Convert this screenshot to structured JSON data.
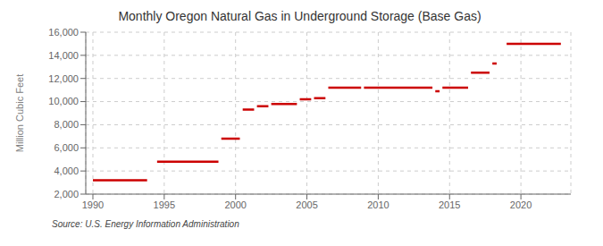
{
  "chart_data": {
    "type": "line",
    "title": "Monthly Oregon Natural Gas in Underground Storage (Base Gas)",
    "y_label": "Million Cubic Feet",
    "annotation": "Source: U.S. Energy Information Administration",
    "color": "#cc0000",
    "grid": true,
    "xlim": [
      1989.5,
      2023.5
    ],
    "xticks": [
      1990,
      1995,
      2000,
      2005,
      2010,
      2015,
      2020
    ],
    "ylim": [
      2000,
      16000
    ],
    "yticks": [
      {
        "value": 2000,
        "label": "2,000"
      },
      {
        "value": 4000,
        "label": "4,000"
      },
      {
        "value": 6000,
        "label": "6,000"
      },
      {
        "value": 8000,
        "label": "8,000"
      },
      {
        "value": 10000,
        "label": "10,000"
      },
      {
        "value": 12000,
        "label": "12,000"
      },
      {
        "value": 14000,
        "label": "14,000"
      },
      {
        "value": 16000,
        "label": "16,000"
      }
    ],
    "x": [
      1990.0,
      1993.8,
      1993.8,
      1994.5,
      1998.8,
      1998.8,
      1999.0,
      2000.3,
      2000.3,
      2000.5,
      2001.3,
      2001.3,
      2001.5,
      2002.3,
      2002.3,
      2002.5,
      2004.3,
      2004.3,
      2004.5,
      2005.3,
      2005.3,
      2005.5,
      2006.3,
      2006.3,
      2006.5,
      2008.8,
      2008.8,
      2009.0,
      2013.8,
      2013.8,
      2014.0,
      2014.3,
      2014.3,
      2014.5,
      2016.3,
      2016.3,
      2016.5,
      2017.8,
      2017.8,
      2018.0,
      2018.3,
      2018.3,
      2019.0,
      2022.8
    ],
    "values": [
      3200,
      3200,
      null,
      4800,
      4800,
      null,
      6800,
      6800,
      null,
      9300,
      9300,
      null,
      9600,
      9600,
      null,
      9800,
      9800,
      null,
      10200,
      10200,
      null,
      10300,
      10300,
      null,
      11200,
      11200,
      null,
      11200,
      11200,
      null,
      10900,
      10900,
      null,
      11200,
      11200,
      null,
      12500,
      12500,
      null,
      13300,
      13300,
      null,
      15000,
      15000
    ]
  }
}
